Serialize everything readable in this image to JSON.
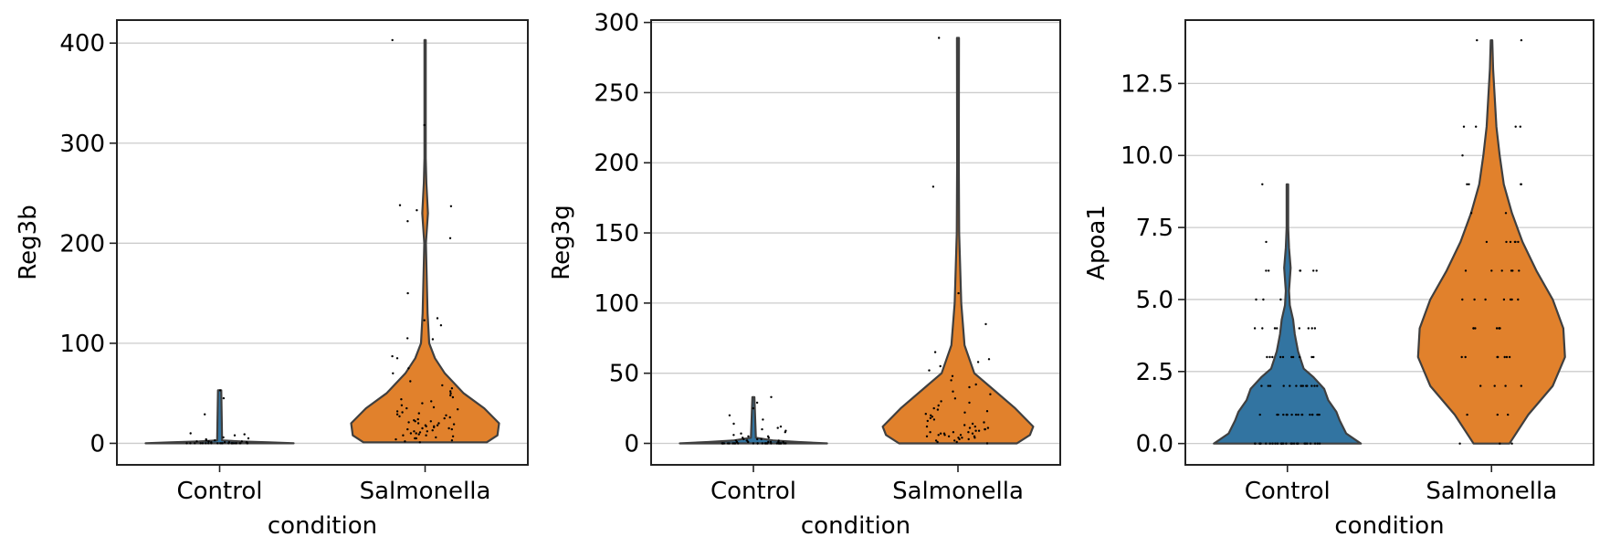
{
  "colors": {
    "Control": "#3274a1",
    "Salmonella": "#e1812c",
    "outline": "#3f3f3f",
    "grid": "#cccccc"
  },
  "chart_data": [
    {
      "type": "violin",
      "xlabel": "condition",
      "ylabel": "Reg3b",
      "categories": [
        "Control",
        "Salmonella"
      ],
      "ylim": [
        -21.5,
        423
      ],
      "yticks": [
        0,
        100,
        200,
        300,
        400
      ],
      "ytick_labels": [
        "0",
        "100",
        "200",
        "300",
        "400"
      ],
      "grid": true,
      "violins": [
        {
          "name": "Control",
          "profile": [
            [
              0,
              0.9
            ],
            [
              1,
              0.6
            ],
            [
              2,
              0.25
            ],
            [
              3,
              0.03
            ],
            [
              53,
              0.02
            ]
          ],
          "points": [
            0,
            0,
            0,
            0,
            0,
            0,
            0,
            0,
            0,
            0,
            0,
            0,
            0,
            0,
            0,
            0,
            0,
            0,
            0,
            0,
            0,
            0,
            0,
            0,
            0,
            0,
            1,
            1,
            1,
            1,
            1,
            2,
            2,
            2,
            2,
            3,
            3,
            4,
            5,
            6,
            8,
            9,
            10,
            29,
            45,
            53
          ]
        },
        {
          "name": "Salmonella",
          "profile": [
            [
              1,
              0.75
            ],
            [
              8,
              0.88
            ],
            [
              20,
              0.9
            ],
            [
              35,
              0.72
            ],
            [
              50,
              0.47
            ],
            [
              70,
              0.24
            ],
            [
              85,
              0.12
            ],
            [
              100,
              0.05
            ],
            [
              130,
              0.03
            ],
            [
              180,
              0.015
            ],
            [
              200,
              0.01
            ],
            [
              230,
              0.035
            ],
            [
              260,
              0.015
            ],
            [
              285,
              0.008
            ],
            [
              403,
              0.008
            ]
          ],
          "points": [
            1,
            2,
            3,
            4,
            5,
            5,
            6,
            7,
            8,
            8,
            9,
            10,
            10,
            11,
            12,
            12,
            13,
            14,
            14,
            15,
            15,
            16,
            17,
            17,
            18,
            18,
            19,
            20,
            20,
            21,
            22,
            22,
            23,
            24,
            25,
            26,
            27,
            28,
            29,
            30,
            31,
            32,
            34,
            35,
            36,
            38,
            40,
            42,
            44,
            46,
            48,
            50,
            52,
            55,
            58,
            62,
            70,
            75,
            85,
            87,
            104,
            105,
            118,
            123,
            125,
            150,
            205,
            222,
            233,
            237,
            238,
            318,
            403
          ]
        }
      ]
    },
    {
      "type": "violin",
      "xlabel": "condition",
      "ylabel": "Reg3g",
      "categories": [
        "Control",
        "Salmonella"
      ],
      "ylim": [
        -15.3,
        301.7
      ],
      "yticks": [
        0,
        50,
        100,
        150,
        200,
        250,
        300
      ],
      "ytick_labels": [
        "0",
        "50",
        "100",
        "150",
        "200",
        "250",
        "300"
      ],
      "grid": true,
      "violins": [
        {
          "name": "Control",
          "profile": [
            [
              0,
              0.9
            ],
            [
              1,
              0.55
            ],
            [
              2,
              0.25
            ],
            [
              4,
              0.03
            ],
            [
              33,
              0.012
            ]
          ],
          "points": [
            0,
            0,
            0,
            0,
            0,
            0,
            0,
            0,
            0,
            0,
            0,
            0,
            0,
            0,
            0,
            0,
            0,
            0,
            0,
            0,
            0,
            0,
            0,
            0,
            0,
            0,
            0,
            0,
            1,
            1,
            1,
            1,
            1,
            1,
            2,
            2,
            2,
            2,
            3,
            3,
            3,
            4,
            4,
            5,
            5,
            6,
            7,
            8,
            9,
            10,
            11,
            12,
            14,
            17,
            20,
            25,
            29,
            33
          ]
        },
        {
          "name": "Salmonella",
          "profile": [
            [
              0,
              0.72
            ],
            [
              6,
              0.88
            ],
            [
              12,
              0.92
            ],
            [
              25,
              0.7
            ],
            [
              40,
              0.4
            ],
            [
              50,
              0.2
            ],
            [
              70,
              0.08
            ],
            [
              100,
              0.04
            ],
            [
              150,
              0.015
            ],
            [
              200,
              0.01
            ],
            [
              289,
              0.012
            ]
          ],
          "points": [
            0,
            1,
            1,
            2,
            2,
            3,
            3,
            4,
            4,
            4,
            5,
            5,
            5,
            6,
            6,
            6,
            7,
            7,
            7,
            8,
            8,
            8,
            9,
            9,
            10,
            10,
            11,
            11,
            12,
            12,
            13,
            14,
            15,
            16,
            17,
            18,
            19,
            20,
            21,
            22,
            23,
            24,
            25,
            27,
            29,
            30,
            32,
            35,
            37,
            40,
            42,
            45,
            48,
            52,
            55,
            58,
            60,
            65,
            85,
            107,
            183,
            289
          ]
        }
      ]
    },
    {
      "type": "violin",
      "xlabel": "condition",
      "ylabel": "Apoa1",
      "categories": [
        "Control",
        "Salmonella"
      ],
      "ylim": [
        -0.74,
        14.7
      ],
      "yticks": [
        0,
        2.5,
        5,
        7.5,
        10,
        12.5
      ],
      "ytick_labels": [
        "0.0",
        "2.5",
        "5.0",
        "7.5",
        "10.0",
        "12.5"
      ],
      "grid": true,
      "violins": [
        {
          "name": "Control",
          "profile": [
            [
              0,
              0.9
            ],
            [
              0.35,
              0.72
            ],
            [
              0.8,
              0.64
            ],
            [
              1.1,
              0.6
            ],
            [
              1.5,
              0.5
            ],
            [
              1.9,
              0.45
            ],
            [
              2.3,
              0.32
            ],
            [
              2.6,
              0.2
            ],
            [
              3.2,
              0.13
            ],
            [
              3.8,
              0.09
            ],
            [
              4.3,
              0.07
            ],
            [
              4.8,
              0.03
            ],
            [
              5.3,
              0.02
            ],
            [
              6.1,
              0.04
            ],
            [
              6.8,
              0.02
            ],
            [
              7.5,
              0.01
            ],
            [
              9,
              0.01
            ]
          ],
          "points": [
            0,
            0,
            0,
            0,
            0,
            0,
            0,
            0,
            0,
            0,
            0,
            0,
            0,
            0,
            0,
            0,
            0,
            0,
            0,
            0,
            0,
            0,
            0,
            0,
            0,
            0,
            0,
            1,
            1,
            1,
            1,
            1,
            1,
            1,
            1,
            1,
            1,
            1,
            1,
            1,
            1,
            1,
            1,
            1,
            1,
            2,
            2,
            2,
            2,
            2,
            2,
            2,
            2,
            2,
            2,
            2,
            2,
            2,
            2,
            2,
            3,
            3,
            3,
            3,
            3,
            3,
            3,
            3,
            3,
            3,
            4,
            4,
            4,
            4,
            4,
            4,
            4,
            4,
            5,
            5,
            5,
            6,
            6,
            6,
            6,
            6,
            6,
            7,
            9
          ]
        },
        {
          "name": "Salmonella",
          "profile": [
            [
              0,
              0.22
            ],
            [
              1,
              0.45
            ],
            [
              2,
              0.75
            ],
            [
              3,
              0.9
            ],
            [
              4,
              0.88
            ],
            [
              5,
              0.75
            ],
            [
              6,
              0.55
            ],
            [
              7,
              0.38
            ],
            [
              8,
              0.25
            ],
            [
              9,
              0.15
            ],
            [
              10,
              0.1
            ],
            [
              11,
              0.06
            ],
            [
              12,
              0.04
            ],
            [
              13,
              0.02
            ],
            [
              14,
              0.01
            ]
          ],
          "points": [
            0,
            0,
            0,
            1,
            1,
            1,
            2,
            2,
            2,
            2,
            3,
            3,
            3,
            3,
            3,
            3,
            3,
            4,
            4,
            4,
            4,
            4,
            4,
            4,
            5,
            5,
            5,
            5,
            5,
            5,
            5,
            6,
            6,
            6,
            6,
            6,
            6,
            7,
            7,
            7,
            7,
            7,
            7,
            8,
            8,
            9,
            9,
            9,
            9,
            10,
            11,
            11,
            11,
            11,
            14,
            14
          ]
        }
      ]
    }
  ]
}
